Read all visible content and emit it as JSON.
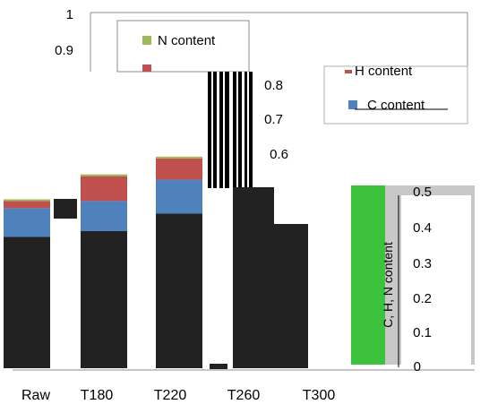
{
  "chart_data": {
    "type": "bar",
    "stacked": true,
    "categories": [
      "Raw",
      "T180",
      "T220",
      "T260",
      "T300"
    ],
    "series": [
      {
        "name": "C content",
        "values": [
          0.45,
          0.47,
          0.53,
          0.0,
          0.0
        ]
      },
      {
        "name": "H content",
        "values": [
          0.02,
          0.07,
          0.06,
          0.0,
          0.0
        ]
      },
      {
        "name": "N content",
        "values": [
          0.005,
          0.005,
          0.005,
          0.0,
          0.0
        ]
      }
    ],
    "ylabel": "C, H, N content",
    "ylim": [
      0,
      1
    ],
    "yticks": [
      "0",
      "0.1",
      "0.2",
      "0.3",
      "0.4",
      "0.5",
      "0.6",
      "0.7",
      "0.8",
      "0.9",
      "1"
    ],
    "legend_position": "top",
    "colors": {
      "C content": "#4f81bd",
      "H content": "#c0504d",
      "N content": "#9bbb59",
      "base": "#222222",
      "artifact_green": "#3cc23c",
      "artifact_gray": "#c8c8c8"
    }
  }
}
